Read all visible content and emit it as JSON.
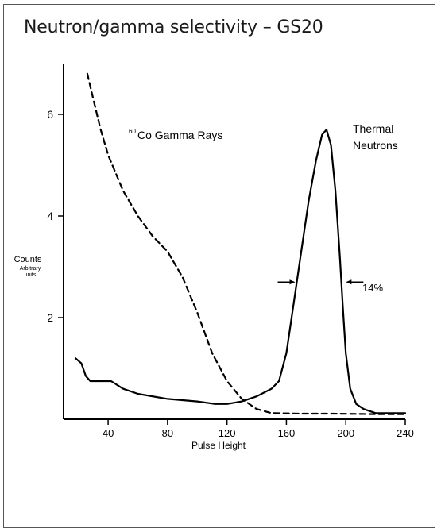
{
  "title": "Neutron/gamma selectivity – GS20",
  "chart_data": {
    "type": "line",
    "xlabel": "Pulse Height",
    "ylabel": "Counts",
    "ylabel_sub": [
      "Arbitrary",
      "units"
    ],
    "xlim": [
      10,
      240
    ],
    "ylim": [
      0,
      7
    ],
    "x_ticks": [
      40,
      80,
      120,
      160,
      200,
      240
    ],
    "y_ticks": [
      2,
      4,
      6
    ],
    "grid": false,
    "series": [
      {
        "name": "60Co Gamma Rays",
        "label_sup": "60",
        "label_main": "Co Gamma Rays",
        "style": "dashed",
        "color": "#000000",
        "points": [
          [
            26,
            6.8
          ],
          [
            30,
            6.3
          ],
          [
            35,
            5.7
          ],
          [
            40,
            5.2
          ],
          [
            50,
            4.5
          ],
          [
            60,
            4.0
          ],
          [
            70,
            3.6
          ],
          [
            80,
            3.3
          ],
          [
            90,
            2.8
          ],
          [
            100,
            2.1
          ],
          [
            110,
            1.3
          ],
          [
            120,
            0.75
          ],
          [
            130,
            0.4
          ],
          [
            140,
            0.2
          ],
          [
            150,
            0.12
          ],
          [
            170,
            0.11
          ],
          [
            190,
            0.11
          ],
          [
            220,
            0.1
          ],
          [
            240,
            0.1
          ]
        ]
      },
      {
        "name": "Thermal Neutrons",
        "label_lines": [
          "Thermal",
          "Neutrons"
        ],
        "style": "solid",
        "color": "#000000",
        "points": [
          [
            18,
            1.2
          ],
          [
            22,
            1.1
          ],
          [
            25,
            0.85
          ],
          [
            28,
            0.75
          ],
          [
            35,
            0.75
          ],
          [
            42,
            0.75
          ],
          [
            50,
            0.6
          ],
          [
            60,
            0.5
          ],
          [
            80,
            0.4
          ],
          [
            100,
            0.35
          ],
          [
            112,
            0.3
          ],
          [
            120,
            0.3
          ],
          [
            130,
            0.35
          ],
          [
            140,
            0.45
          ],
          [
            150,
            0.6
          ],
          [
            155,
            0.75
          ],
          [
            160,
            1.3
          ],
          [
            165,
            2.3
          ],
          [
            170,
            3.3
          ],
          [
            175,
            4.3
          ],
          [
            180,
            5.1
          ],
          [
            184,
            5.6
          ],
          [
            187,
            5.7
          ],
          [
            190,
            5.4
          ],
          [
            193,
            4.5
          ],
          [
            196,
            3.2
          ],
          [
            198,
            2.2
          ],
          [
            200,
            1.3
          ],
          [
            203,
            0.6
          ],
          [
            207,
            0.3
          ],
          [
            212,
            0.2
          ],
          [
            220,
            0.12
          ],
          [
            240,
            0.12
          ]
        ]
      }
    ],
    "annotations": [
      {
        "text": "14%",
        "arrow_left_x": 167,
        "arrow_right_x": 199,
        "y": 2.7
      }
    ]
  }
}
